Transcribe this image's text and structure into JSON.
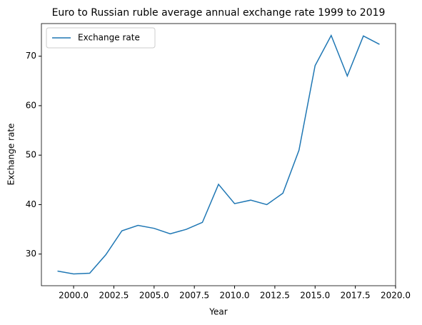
{
  "chart_data": {
    "type": "line",
    "title": "Euro to Russian ruble average annual exchange rate 1999 to 2019",
    "x_label": "Year",
    "y_label": "Exchange rate",
    "x": [
      1999,
      2000,
      2001,
      2002,
      2003,
      2004,
      2005,
      2006,
      2007,
      2008,
      2009,
      2010,
      2011,
      2012,
      2013,
      2014,
      2015,
      2016,
      2017,
      2018,
      2019
    ],
    "series": [
      {
        "name": "Exchange rate",
        "color": "#1f77b4",
        "values": [
          26.56,
          25.98,
          26.13,
          29.86,
          34.7,
          35.8,
          35.2,
          34.1,
          35.0,
          36.4,
          44.1,
          40.2,
          40.9,
          40.0,
          42.3,
          51.0,
          68.1,
          74.2,
          66.0,
          74.1,
          72.4
        ]
      }
    ],
    "xlim": [
      1998,
      2020
    ],
    "ylim": [
      23.6,
      76.6
    ],
    "xticks": [
      {
        "value": 2000,
        "label": "2000.0"
      },
      {
        "value": 2002.5,
        "label": "2002.5"
      },
      {
        "value": 2005,
        "label": "2005.0"
      },
      {
        "value": 2007.5,
        "label": "2007.5"
      },
      {
        "value": 2010,
        "label": "2010.0"
      },
      {
        "value": 2012.5,
        "label": "2012.5"
      },
      {
        "value": 2015,
        "label": "2015.0"
      },
      {
        "value": 2017.5,
        "label": "2017.5"
      },
      {
        "value": 2020,
        "label": "2020.0"
      }
    ],
    "yticks": [
      30,
      40,
      50,
      60,
      70
    ],
    "legend": "upper left",
    "grid": false
  }
}
